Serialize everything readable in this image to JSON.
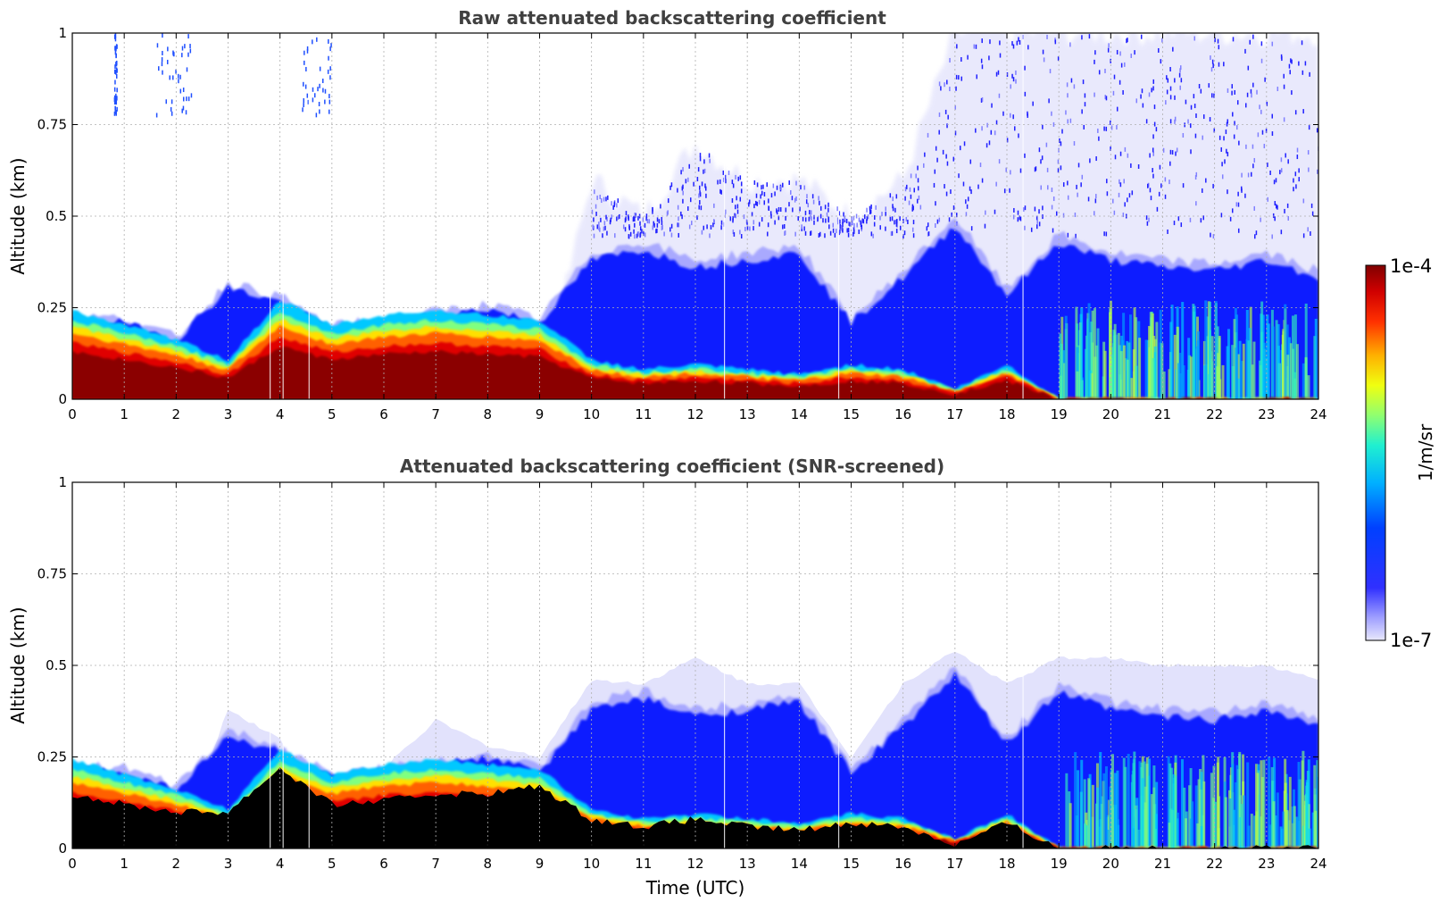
{
  "chart_data": [
    {
      "type": "heatmap",
      "title": "Raw attenuated backscattering coefficient",
      "xlabel": "",
      "ylabel": "Altitude (km)",
      "xlim": [
        0,
        24
      ],
      "ylim": [
        0,
        1
      ],
      "x_ticks": [
        "0",
        "1",
        "2",
        "3",
        "4",
        "5",
        "6",
        "7",
        "8",
        "9",
        "10",
        "11",
        "12",
        "13",
        "14",
        "15",
        "16",
        "17",
        "18",
        "19",
        "20",
        "21",
        "22",
        "23",
        "24"
      ],
      "y_ticks": [
        "0",
        "0.25",
        "0.5",
        "0.75",
        "1"
      ],
      "grid": true,
      "colormap": "jet",
      "color_scale": "log",
      "layer_profile": {
        "hours": [
          0,
          1,
          2,
          3,
          4,
          5,
          6,
          7,
          8,
          9,
          10,
          11,
          12,
          13,
          14,
          15,
          16,
          17,
          18,
          19,
          20,
          21,
          22,
          23,
          24
        ],
        "saturated_layer_top_km": [
          0.18,
          0.15,
          0.12,
          0.08,
          0.2,
          0.15,
          0.17,
          0.18,
          0.17,
          0.16,
          0.08,
          0.06,
          0.07,
          0.06,
          0.05,
          0.07,
          0.06,
          0.02,
          0.07,
          0.0,
          0.0,
          0.0,
          0.0,
          0.0,
          0.0
        ],
        "signal_top_km": [
          0.23,
          0.22,
          0.17,
          0.32,
          0.28,
          0.2,
          0.22,
          0.24,
          0.26,
          0.22,
          0.4,
          0.43,
          0.38,
          0.4,
          0.42,
          0.22,
          0.35,
          0.5,
          0.3,
          0.45,
          0.4,
          0.38,
          0.37,
          0.4,
          0.35
        ],
        "high_noise_top_km": [
          0.0,
          0.0,
          0.0,
          0.0,
          0.0,
          0.0,
          0.0,
          0.0,
          0.0,
          0.0,
          0.6,
          0.5,
          0.7,
          0.6,
          0.6,
          0.5,
          0.6,
          1.0,
          1.0,
          1.0,
          1.0,
          1.0,
          1.0,
          1.0,
          1.0
        ]
      }
    },
    {
      "type": "heatmap",
      "title": "Attenuated backscattering coefficient (SNR-screened)",
      "xlabel": "Time (UTC)",
      "ylabel": "Altitude (km)",
      "xlim": [
        0,
        24
      ],
      "ylim": [
        0,
        1
      ],
      "x_ticks": [
        "0",
        "1",
        "2",
        "3",
        "4",
        "5",
        "6",
        "7",
        "8",
        "9",
        "10",
        "11",
        "12",
        "13",
        "14",
        "15",
        "16",
        "17",
        "18",
        "19",
        "20",
        "21",
        "22",
        "23",
        "24"
      ],
      "y_ticks": [
        "0",
        "0.25",
        "0.5",
        "0.75",
        "1"
      ],
      "grid": true,
      "colormap": "jet",
      "color_scale": "log",
      "screened_top_km": [
        0.15,
        0.12,
        0.1,
        0.1,
        0.22,
        0.12,
        0.13,
        0.15,
        0.15,
        0.17,
        0.08,
        0.06,
        0.08,
        0.06,
        0.05,
        0.07,
        0.06,
        0.01,
        0.07,
        0.0,
        0.0,
        0.0,
        0.0,
        0.0,
        0.0
      ]
    }
  ],
  "colorbar": {
    "label": "1/m/sr",
    "max_label": "1e-4",
    "min_label": "1e-7"
  },
  "colors": {
    "title": "#404040",
    "grid": "#b0b0b0",
    "colormap_stops": [
      "#e6e6fa",
      "#0000ff",
      "#00c8ff",
      "#7fff7f",
      "#ffff00",
      "#ff7f00",
      "#ff0000",
      "#8b0000"
    ]
  }
}
